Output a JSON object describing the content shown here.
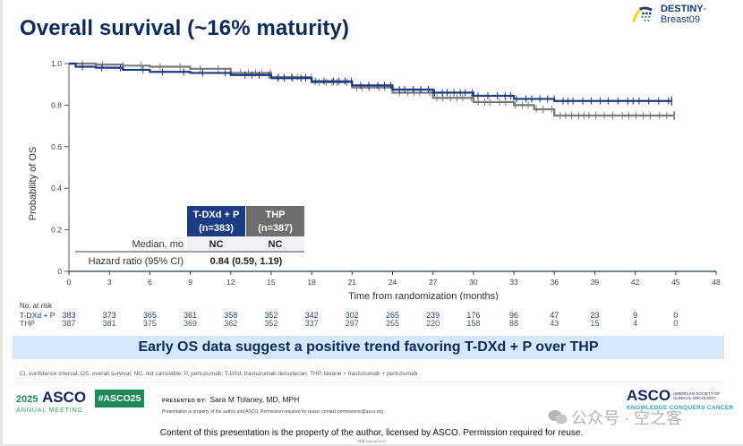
{
  "slide": {
    "title": "Overall survival (~16% maturity)",
    "brand": {
      "name_bold": "DESTINY",
      "name_light": "-Breast09"
    },
    "banner": "Early OS data suggest a positive trend favoring T-DXd + P over THP",
    "abbreviations": "CI, confidence interval; OS, overall survival; NC, not calculable; P, pertuzumab; T-DXd, trastuzumab deruxtecan; THP, taxane + trastuzumab + pertuzumab",
    "meeting": {
      "year": "2025",
      "org": "ASCO",
      "subtitle": "ANNUAL MEETING",
      "hashtag": "#ASCO25"
    },
    "presented": {
      "label": "PRESENTED BY:",
      "name": "Sara M Tolaney, MD, MPH",
      "note": "Presentation is property of the author and ASCO. Permission required for reuse; contact permissions@asco.org."
    },
    "asco_logo": {
      "name": "ASCO",
      "society_line1": "AMERICAN SOCIETY OF",
      "society_line2": "CLINICAL ONCOLOGY",
      "tagline": "KNOWLEDGE CONQUERS CANCER"
    },
    "watermark": "公众号 · 空之客",
    "footer": "Content of this presentation is the property of the author, licensed by ASCO. Permission required for reuse.",
    "footer_small": "内部 Internal (C2)",
    "colors": {
      "tdxd": "#1b3b84",
      "thp": "#7a7a7a",
      "title": "#0b2b5c",
      "banner_bg": "#d6e7fa",
      "asco_green": "#1e8a5a"
    }
  },
  "chart_data": {
    "type": "line",
    "subtype": "kaplan-meier",
    "title": "Overall survival (~16% maturity)",
    "xlabel": "Time from randomization (months)",
    "ylabel": "Probability of OS",
    "xlim": [
      0,
      48
    ],
    "ylim": [
      0,
      1.0
    ],
    "x_ticks": [
      "0",
      "3",
      "6",
      "9",
      "12",
      "15",
      "18",
      "21",
      "24",
      "27",
      "30",
      "33",
      "36",
      "39",
      "42",
      "45",
      "48"
    ],
    "y_ticks": [
      "0",
      "0.2",
      "0.4",
      "0.6",
      "0.8",
      "1.0"
    ],
    "grid": false,
    "series": [
      {
        "name": "T-DXd + P",
        "n_label": "(n=383)",
        "color": "#1b3b84",
        "x": [
          0,
          0.5,
          2,
          4,
          6,
          9,
          12,
          15,
          18,
          21,
          24,
          27,
          30,
          33,
          36,
          39,
          42,
          44.7
        ],
        "y": [
          1.0,
          0.985,
          0.98,
          0.97,
          0.96,
          0.955,
          0.945,
          0.93,
          0.915,
          0.895,
          0.875,
          0.86,
          0.845,
          0.83,
          0.82,
          0.82,
          0.82,
          0.82
        ]
      },
      {
        "name": "THP",
        "n_label": "(n=387)",
        "color": "#7a7a7a",
        "x": [
          0,
          2,
          4,
          6,
          9,
          12,
          15,
          18,
          21,
          24,
          27,
          30,
          33,
          34.5,
          36,
          39,
          42,
          44.9
        ],
        "y": [
          1.0,
          0.995,
          0.99,
          0.985,
          0.975,
          0.955,
          0.935,
          0.91,
          0.885,
          0.86,
          0.835,
          0.815,
          0.8,
          0.78,
          0.75,
          0.75,
          0.75,
          0.75
        ]
      }
    ],
    "stats_table": {
      "columns": [
        "T-DXd + P\n(n=383)",
        "THP\n(n=387)"
      ],
      "col1_header_line1": "T-DXd + P",
      "col1_header_line2": "(n=383)",
      "col2_header_line1": "THP",
      "col2_header_line2": "(n=387)",
      "median_label": "Median, mo",
      "median_values": [
        "NC",
        "NC"
      ],
      "hr_label": "Hazard ratio (95% CI)",
      "hr_value": "0.84 (0.59, 1.19)"
    },
    "at_risk": {
      "header": "No. at risk",
      "rows": [
        {
          "label": "T-DXd + P",
          "values": [
            "383",
            "373",
            "365",
            "361",
            "358",
            "352",
            "342",
            "302",
            "265",
            "239",
            "176",
            "96",
            "47",
            "23",
            "9",
            "0"
          ]
        },
        {
          "label": "THP",
          "values": [
            "387",
            "381",
            "375",
            "369",
            "362",
            "352",
            "337",
            "297",
            "255",
            "220",
            "158",
            "88",
            "43",
            "15",
            "4",
            "0"
          ]
        }
      ]
    }
  }
}
